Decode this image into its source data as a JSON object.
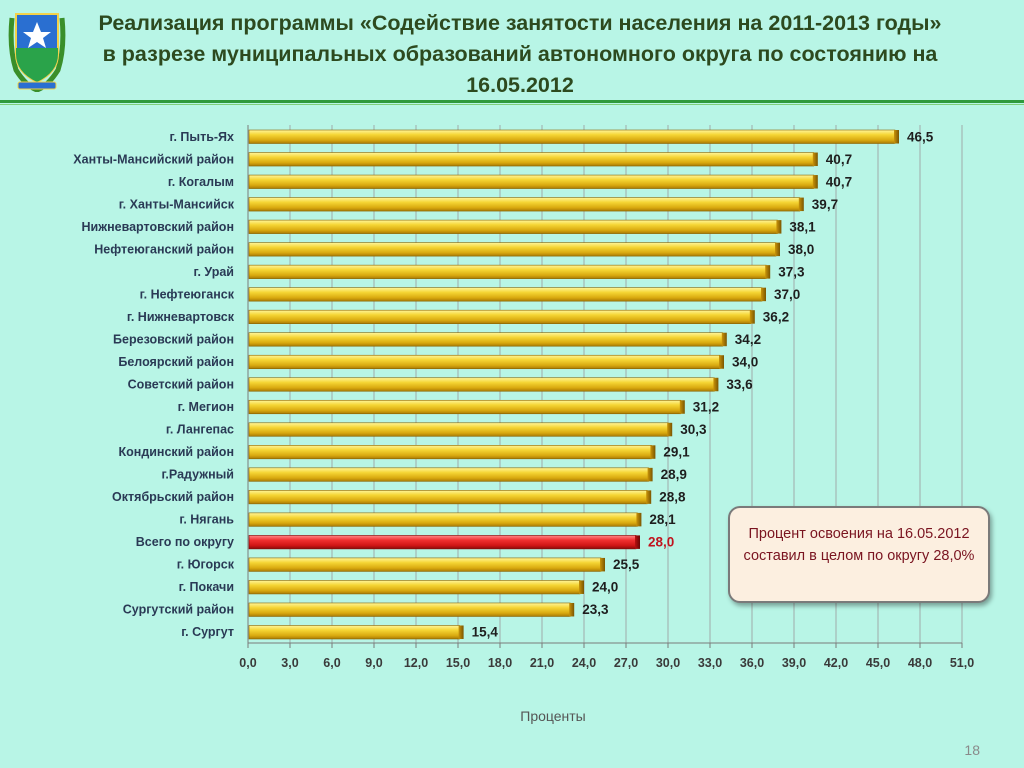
{
  "page": {
    "title": "Реализация программы «Содействие занятости населения на 2011-2013 годы» в разрезе муниципальных образований автономного округа  по состоянию на 16.05.2012",
    "callout": "Процент освоения на 16.05.2012 составил в целом по округу 28,0%",
    "page_number": "18"
  },
  "colors": {
    "background": "#b8f5e6",
    "bar": "#e8c21f",
    "highlight_bar": "#e01b1b",
    "highlight_label": "#c0141e",
    "rule": "#2f9a3c"
  },
  "chart_data": {
    "type": "bar",
    "orientation": "horizontal",
    "categories": [
      "г. Пыть-Ях",
      "Ханты-Мансийский район",
      "г. Когалым",
      "г. Ханты-Мансийск",
      "Нижневартовский район",
      "Нефтеюганский район",
      "г. Урай",
      "г. Нефтеюганск",
      "г. Нижневартовск",
      "Березовский район",
      "Белоярский  район",
      "Советский район",
      "г. Мегион",
      "г. Лангепас",
      "Кондинский район",
      "г.Радужный",
      "Октябрьский район",
      "г. Нягань",
      "Всего по округу",
      "г. Югорск",
      "г. Покачи",
      "Сургутский район",
      "г. Сургут"
    ],
    "values": [
      46.5,
      40.7,
      40.7,
      39.7,
      38.1,
      38.0,
      37.3,
      37.0,
      36.2,
      34.2,
      34.0,
      33.6,
      31.2,
      30.3,
      29.1,
      28.9,
      28.8,
      28.1,
      28.0,
      25.5,
      24.0,
      23.3,
      15.4
    ],
    "value_labels": [
      "46,5",
      "40,7",
      "40,7",
      "39,7",
      "38,1",
      "38,0",
      "37,3",
      "37,0",
      "36,2",
      "34,2",
      "34,0",
      "33,6",
      "31,2",
      "30,3",
      "29,1",
      "28,9",
      "28,8",
      "28,1",
      "28,0",
      "25,5",
      "24,0",
      "23,3",
      "15,4"
    ],
    "highlight_category": "Всего по округу",
    "xlim": [
      0,
      51
    ],
    "x_ticks": [
      "0,0",
      "3,0",
      "6,0",
      "9,0",
      "12,0",
      "15,0",
      "18,0",
      "21,0",
      "24,0",
      "27,0",
      "30,0",
      "33,0",
      "36,0",
      "39,0",
      "42,0",
      "45,0",
      "48,0",
      "51,0"
    ],
    "xlabel": "Проценты",
    "grid": "vertical"
  }
}
